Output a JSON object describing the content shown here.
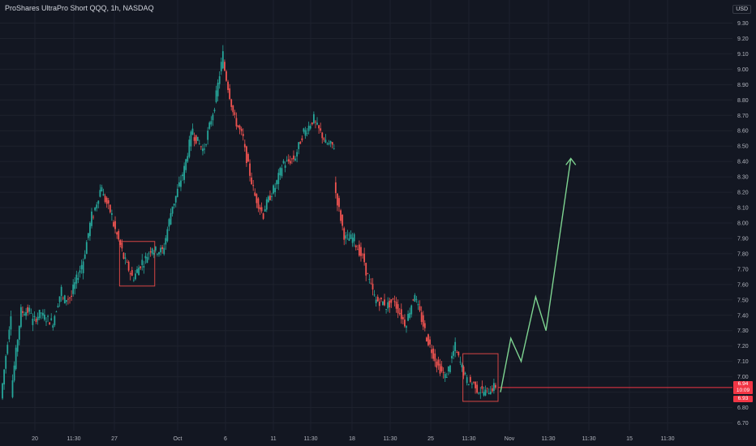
{
  "header": {
    "symbol_title": "ProShares UltraPro Short QQQ, 1h, NASDAQ",
    "currency": "USD"
  },
  "price_labels": {
    "last_price": "6.94",
    "countdown": "10:09",
    "bid_price": "6.93"
  },
  "colors": {
    "background": "#131722",
    "bull": "#26a69a",
    "bear": "#ef5350",
    "grid": "#1e222d",
    "axis_text": "#b2b5be",
    "projection": "#7ed491",
    "box": "#d64545",
    "price_line": "#f23645"
  },
  "chart_data": {
    "type": "candlestick",
    "title": "ProShares UltraPro Short QQQ, 1h, NASDAQ",
    "ylabel": "USD",
    "ylim": [
      6.65,
      9.35
    ],
    "y_ticks": [
      "6.70",
      "6.80",
      "6.90",
      "7.00",
      "7.10",
      "7.20",
      "7.30",
      "7.40",
      "7.50",
      "7.60",
      "7.70",
      "7.80",
      "7.90",
      "8.00",
      "8.10",
      "8.20",
      "8.30",
      "8.40",
      "8.50",
      "8.60",
      "8.70",
      "8.80",
      "8.90",
      "9.00",
      "9.10",
      "9.20",
      "9.30"
    ],
    "x_ticks": [
      "20",
      "11:30",
      "27",
      "Oct",
      "6",
      "11",
      "11:30",
      "18",
      "11:30",
      "25",
      "11:30",
      "Nov",
      "11:30",
      "11:30",
      "15",
      "11:30"
    ],
    "trend_path": [
      [
        6.86,
        7.42
      ],
      [
        6.89,
        7.43
      ],
      [
        7.42,
        7.43
      ],
      [
        7.35,
        7.42
      ],
      [
        7.4,
        7.36
      ],
      [
        7.32,
        7.57
      ],
      [
        7.5,
        7.52
      ],
      [
        7.54,
        7.73
      ],
      [
        7.7,
        8.05
      ],
      [
        8.02,
        8.25
      ],
      [
        8.2,
        8.05
      ],
      [
        8.02,
        7.82
      ],
      [
        7.8,
        7.65
      ],
      [
        7.63,
        7.75
      ],
      [
        7.73,
        7.85
      ],
      [
        7.82,
        7.82
      ],
      [
        7.8,
        8.12
      ],
      [
        8.1,
        8.32
      ],
      [
        8.3,
        8.62
      ],
      [
        8.58,
        8.48
      ],
      [
        8.45,
        8.72
      ],
      [
        8.7,
        9.1
      ],
      [
        9.05,
        8.72
      ],
      [
        8.7,
        8.55
      ],
      [
        8.52,
        8.22
      ],
      [
        8.2,
        8.05
      ],
      [
        8.08,
        8.22
      ],
      [
        8.2,
        8.4
      ],
      [
        8.38,
        8.42
      ],
      [
        8.4,
        8.6
      ],
      [
        8.58,
        8.68
      ],
      [
        8.66,
        8.55
      ],
      [
        8.52,
        8.5
      ],
      [
        8.25,
        7.92
      ],
      [
        7.9,
        7.9
      ],
      [
        7.88,
        7.75
      ],
      [
        7.72,
        7.52
      ],
      [
        7.5,
        7.48
      ],
      [
        7.45,
        7.5
      ],
      [
        7.48,
        7.35
      ],
      [
        7.32,
        7.55
      ],
      [
        7.52,
        7.3
      ],
      [
        7.28,
        7.12
      ],
      [
        7.1,
        7.0
      ],
      [
        6.98,
        7.2
      ],
      [
        7.18,
        7.0
      ],
      [
        6.98,
        6.95
      ],
      [
        6.92,
        6.9
      ],
      [
        6.9,
        6.94
      ]
    ],
    "candle_wick_range": 0.04,
    "annotations": {
      "projection_path": [
        [
          6.9,
          0.0
        ],
        [
          7.25,
          0.5
        ],
        [
          7.1,
          1.0
        ],
        [
          7.52,
          1.7
        ],
        [
          7.3,
          2.2
        ],
        [
          8.42,
          3.4
        ]
      ],
      "left_box": {
        "from_index": 12,
        "to_index": 14,
        "low": 7.59,
        "high": 7.88
      },
      "right_box": {
        "from_index": 46,
        "to_index": 48,
        "low": 6.84,
        "high": 7.15
      },
      "horizontal_level": 6.93
    }
  }
}
